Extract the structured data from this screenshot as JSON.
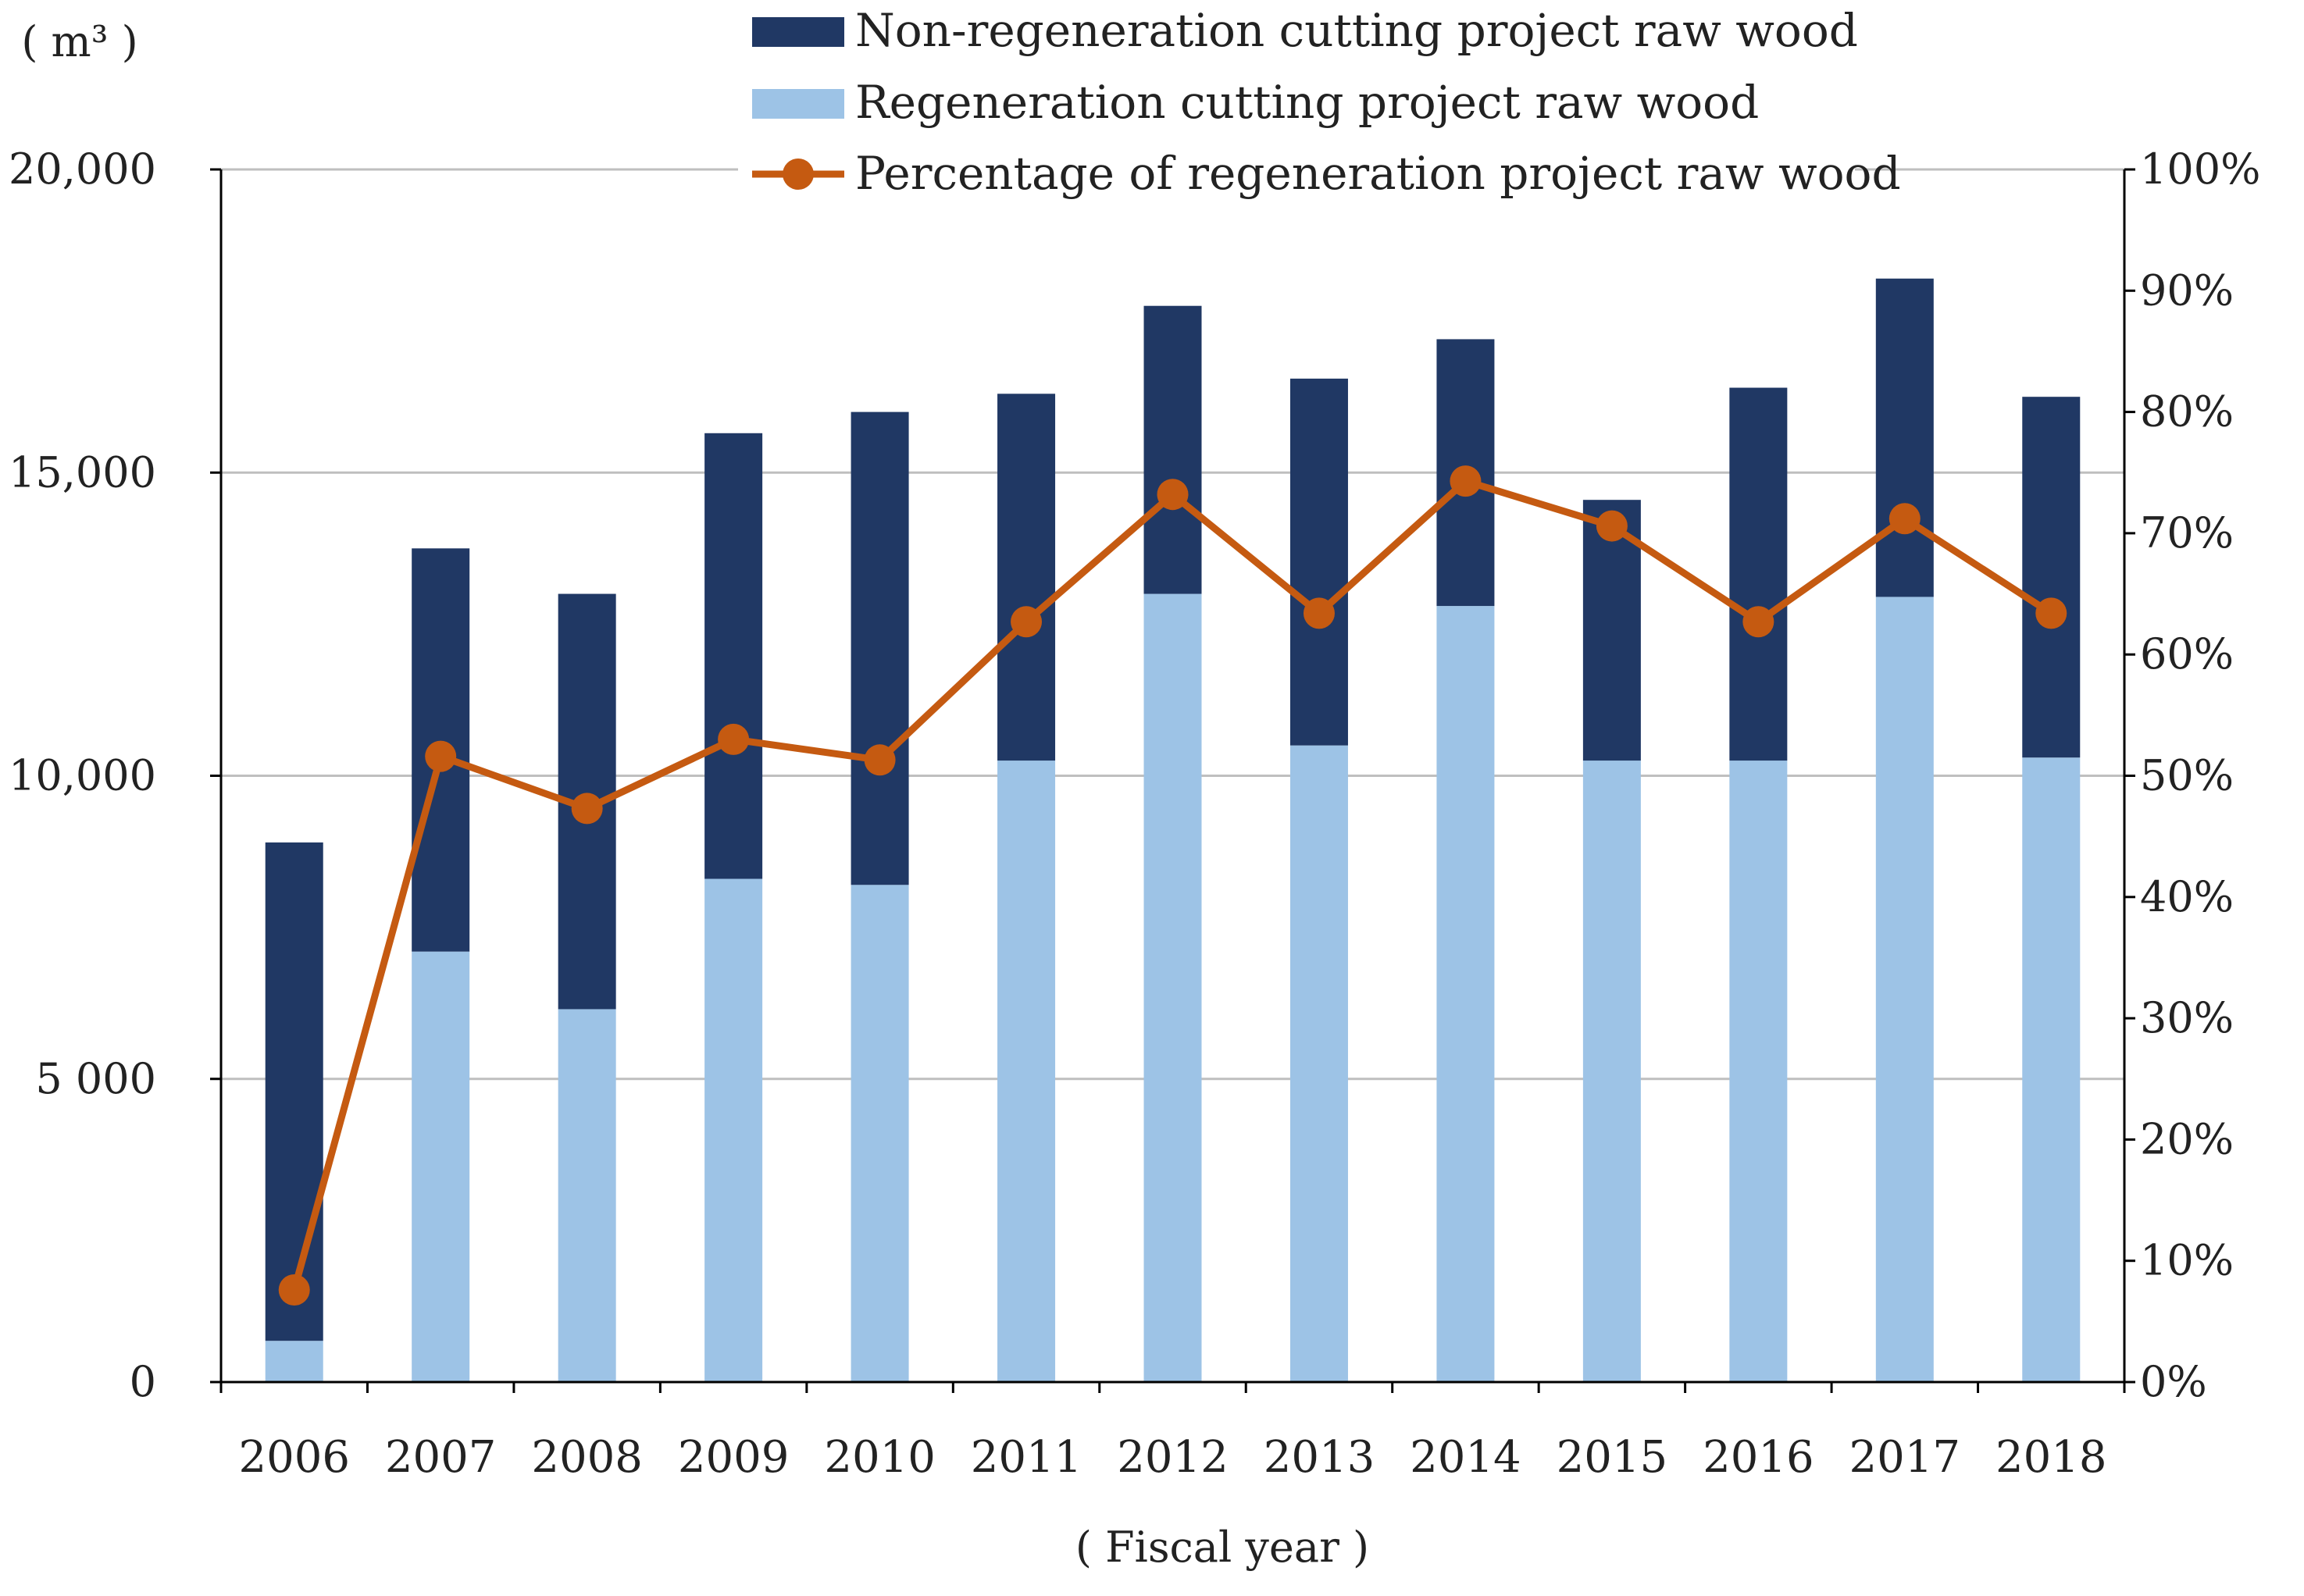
{
  "chart_data": {
    "type": "bar",
    "stacked": true,
    "title": "",
    "y_unit_label": "( m³ )",
    "xlabel": "( Fiscal year )",
    "ylim": [
      0,
      20000
    ],
    "y2lim": [
      0,
      100
    ],
    "y_ticks": [
      0,
      5000,
      10000,
      15000,
      20000
    ],
    "y_tick_labels": [
      "0",
      "5 000",
      "10,000",
      "15,000",
      "20,000"
    ],
    "y2_ticks": [
      0,
      10,
      20,
      30,
      40,
      50,
      60,
      70,
      80,
      90,
      100
    ],
    "y2_tick_labels": [
      "0%",
      "10%",
      "20%",
      "30%",
      "40%",
      "50%",
      "60%",
      "70%",
      "80%",
      "90%",
      "100%"
    ],
    "categories": [
      "2006",
      "2007",
      "2008",
      "2009",
      "2010",
      "2011",
      "2012",
      "2013",
      "2014",
      "2015",
      "2016",
      "2017",
      "2018"
    ],
    "series": [
      {
        "name": "Regeneration cutting project raw wood",
        "kind": "bar",
        "color": "#9dc3e6",
        "values": [
          680,
          7100,
          6150,
          8300,
          8200,
          10250,
          13000,
          10500,
          12800,
          10250,
          10250,
          12950,
          10300
        ]
      },
      {
        "name": "Non-regeneration cutting project raw wood",
        "kind": "bar",
        "color": "#203864",
        "values": [
          8220,
          6650,
          6850,
          7350,
          7800,
          6050,
          4750,
          6050,
          4400,
          4300,
          6150,
          5250,
          5950
        ]
      },
      {
        "name": "Percentage of regeneration project raw wood",
        "kind": "line",
        "axis": "right",
        "color": "#c55a11",
        "values": [
          7.6,
          51.6,
          47.3,
          53.0,
          51.3,
          62.7,
          73.2,
          63.4,
          74.3,
          70.6,
          62.7,
          71.2,
          63.4
        ]
      }
    ],
    "legend": [
      {
        "label": "Non-regeneration cutting project raw wood",
        "color": "#203864",
        "marker": "box"
      },
      {
        "label": "Regeneration cutting project raw wood",
        "color": "#9dc3e6",
        "marker": "box"
      },
      {
        "label": "Percentage of regeneration project raw wood",
        "color": "#c55a11",
        "marker": "line"
      }
    ],
    "legend_position": "top-center",
    "grid": true
  }
}
